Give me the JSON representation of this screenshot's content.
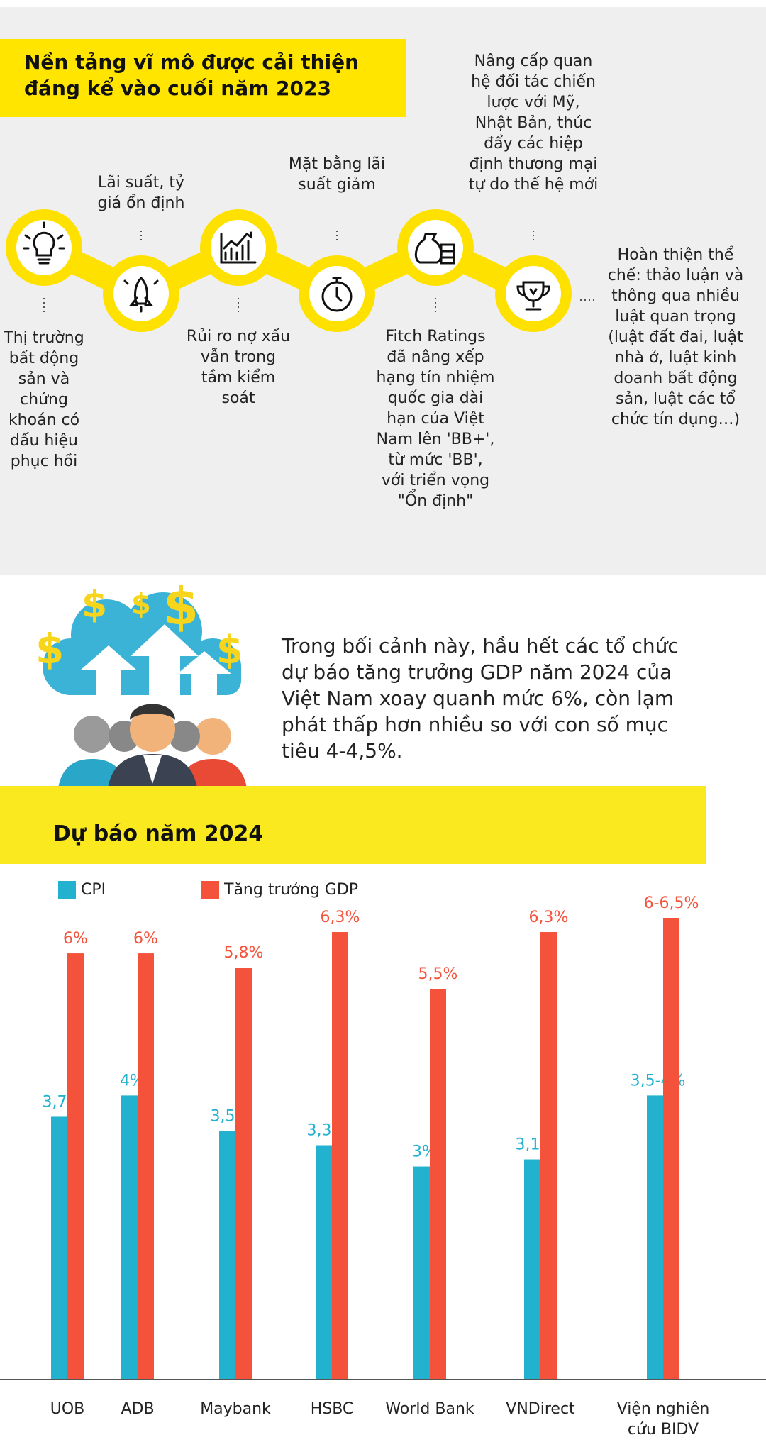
{
  "header": {
    "title": "Nền tảng vĩ mô được cải thiện đáng kể vào cuối năm 2023"
  },
  "timeline": [
    {
      "text": "Thị trường bất động sản và chứng khoán có dấu hiệu phục hồi"
    },
    {
      "text": "Lãi suất, tỷ giá ổn định"
    },
    {
      "text": "Rủi ro nợ xấu vẫn trong tầm kiểm soát"
    },
    {
      "text": "Mặt bằng lãi suất giảm"
    },
    {
      "text": "Fitch Ratings đã nâng xếp hạng tín nhiệm quốc gia dài hạn của Việt Nam lên 'BB+', từ mức 'BB', với triển vọng \"Ổn định\""
    },
    {
      "text": "Nâng cấp quan hệ đối tác chiến lược với Mỹ, Nhật Bản, thúc đẩy các hiệp định thương mại tự do thế hệ mới"
    },
    {
      "text": "Hoàn thiện thể chế: thảo luận và thông qua nhiều luật quan trọng (luật đất đai, luật nhà ở, luật kinh doanh bất động sản, luật các tổ chức tín dụng…)"
    }
  ],
  "intro": "Trong bối cảnh này, hầu hết các tổ chức dự báo tăng trưởng GDP năm 2024 của Việt Nam xoay quanh mức 6%, còn lạm phát thấp hơn nhiều so với con số mục tiêu 4-4,5%.",
  "chart_data": {
    "type": "bar",
    "title": "Dự báo năm 2024",
    "categories": [
      "UOB",
      "ADB",
      "Maybank",
      "HSBC",
      "World Bank",
      "VNDirect",
      "Viện nghiên cứu BIDV"
    ],
    "series": [
      {
        "name": "CPI",
        "color": "#22b2cf",
        "values": [
          3.7,
          4,
          3.5,
          3.3,
          3,
          3.1,
          4
        ],
        "value_labels": [
          "3,7%",
          "4%",
          "3,5%",
          "3,3%",
          "3%",
          "3,1%",
          "3,5-4%"
        ]
      },
      {
        "name": "Tăng trưởng GDP",
        "color": "#f4523b",
        "values": [
          6,
          6,
          5.8,
          6.3,
          5.5,
          6.3,
          6.5
        ],
        "value_labels": [
          "6%",
          "6%",
          "5,8%",
          "6,3%",
          "5,5%",
          "6,3%",
          "6-6,5%"
        ]
      }
    ],
    "ylim": [
      0,
      6.5
    ],
    "legend": "top-left"
  }
}
